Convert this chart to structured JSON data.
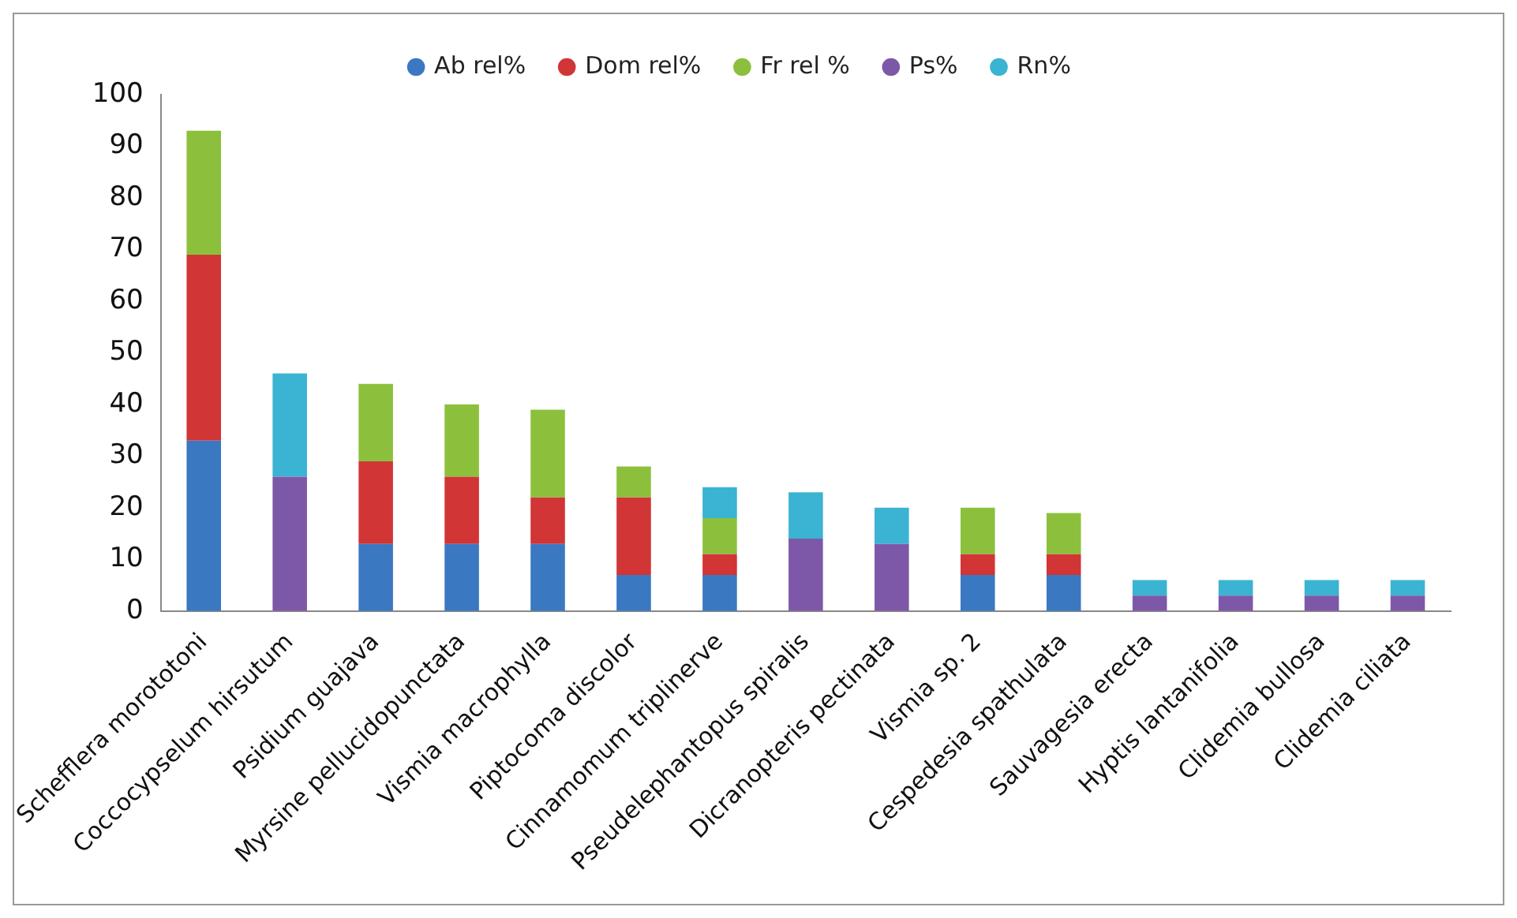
{
  "chart_data": {
    "type": "bar",
    "stacked": true,
    "legend": "top",
    "categories": [
      "Schefflera morototoni",
      "Coccocypselum hirsutum",
      "Psidium guajava",
      "Myrsine pellucidopunctata",
      "Vismia macrophylla",
      "Piptocoma discolor",
      "Cinnamomum triplinerve",
      "Pseudelephantopus spiralis",
      "Dicranopteris pectinata",
      "Vismia sp. 2",
      "Cespedesia spathulata",
      "Sauvagesia erecta",
      "Hyptis lantanifolia",
      "Clidemia bullosa",
      "Clidemia ciliata"
    ],
    "series": [
      {
        "name": "Ab rel%",
        "color": "#3b78c2",
        "values": [
          33,
          0,
          13,
          13,
          13,
          7,
          7,
          0,
          0,
          7,
          7,
          0,
          0,
          0,
          0
        ]
      },
      {
        "name": "Dom rel%",
        "color": "#d13535",
        "values": [
          36,
          0,
          16,
          13,
          9,
          15,
          4,
          0,
          0,
          4,
          4,
          0,
          0,
          0,
          0
        ]
      },
      {
        "name": "Fr rel %",
        "color": "#8cc03c",
        "values": [
          24,
          0,
          15,
          14,
          17,
          6,
          7,
          0,
          0,
          9,
          8,
          0,
          0,
          0,
          0
        ]
      },
      {
        "name": "Ps%",
        "color": "#7e58a8",
        "values": [
          0,
          26,
          0,
          0,
          0,
          0,
          0,
          14,
          13,
          0,
          0,
          3,
          3,
          3,
          3
        ]
      },
      {
        "name": "Rn%",
        "color": "#3bb3d2",
        "values": [
          0,
          20,
          0,
          0,
          0,
          0,
          6,
          9,
          7,
          0,
          0,
          3,
          3,
          3,
          3
        ]
      }
    ],
    "ylim": [
      0,
      100
    ],
    "yticks": [
      0,
      10,
      20,
      30,
      40,
      50,
      60,
      70,
      80,
      90,
      100
    ],
    "grid": false
  }
}
